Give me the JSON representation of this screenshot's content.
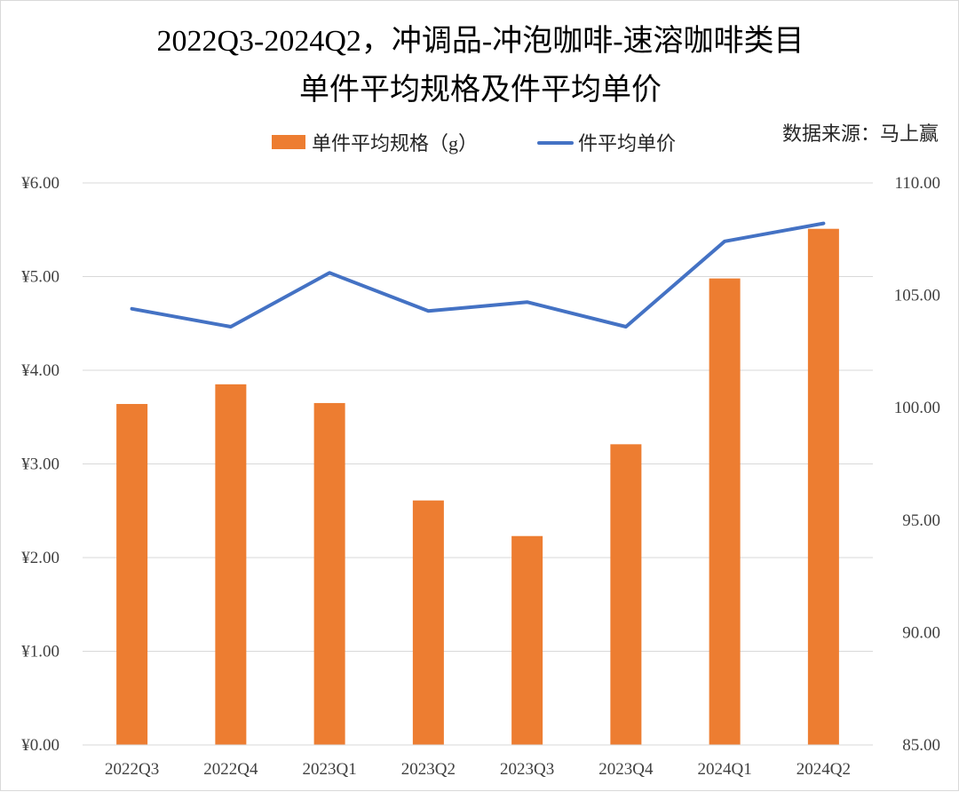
{
  "chart_data": {
    "type": "bar+line",
    "title": "2022Q3-2024Q2，冲调品-冲泡咖啡-速溶咖啡类目",
    "subtitle": "单件平均规格及件平均单价",
    "source": "数据来源：马上赢",
    "categories": [
      "2022Q3",
      "2022Q4",
      "2023Q1",
      "2023Q2",
      "2023Q3",
      "2023Q4",
      "2024Q1",
      "2024Q2"
    ],
    "series": [
      {
        "name": "单件平均规格（g）",
        "type": "bar",
        "axis": "left",
        "color": "#ED7D31",
        "values": [
          3.64,
          3.85,
          3.65,
          2.61,
          2.23,
          3.21,
          4.98,
          5.51
        ]
      },
      {
        "name": "件平均单价",
        "type": "line",
        "axis": "right",
        "color": "#4472C4",
        "values": [
          104.4,
          103.6,
          106.0,
          104.3,
          104.7,
          103.6,
          107.4,
          108.2
        ]
      }
    ],
    "y_left": {
      "min": 0,
      "max": 6,
      "step": 1,
      "ticks": [
        "¥0.00",
        "¥1.00",
        "¥2.00",
        "¥3.00",
        "¥4.00",
        "¥5.00",
        "¥6.00"
      ]
    },
    "y_right": {
      "min": 85,
      "max": 110,
      "step": 5,
      "ticks": [
        "85.00",
        "90.00",
        "95.00",
        "100.00",
        "105.00",
        "110.00"
      ]
    },
    "grid": true,
    "legend_position": "top"
  }
}
